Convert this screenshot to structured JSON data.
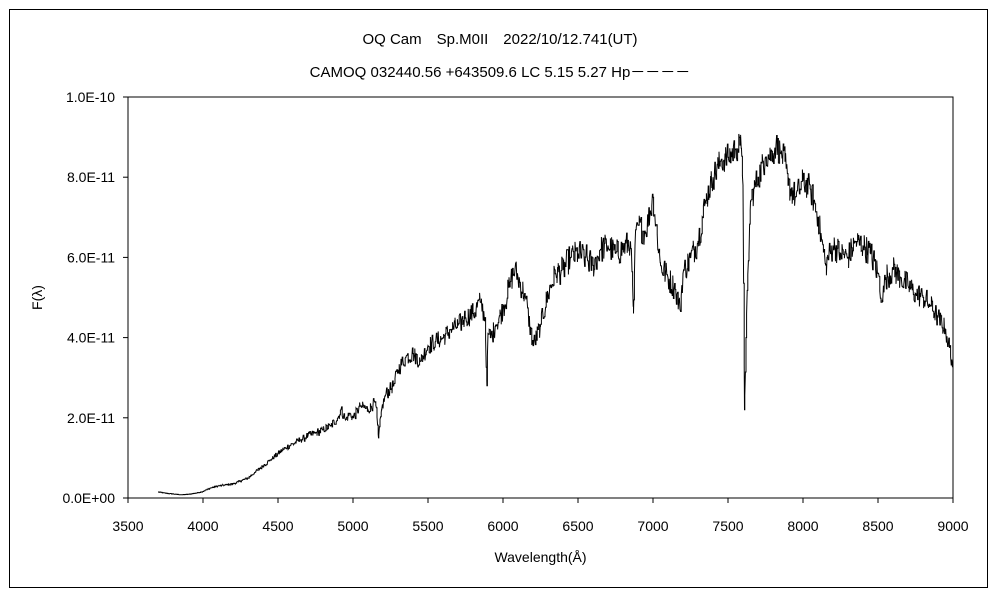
{
  "chart_data": {
    "type": "line",
    "title": "OQ Cam　Sp.M0II　2022/10/12.741(UT)",
    "subtitle": "CAMOQ 032440.56 +643509.6 LC 5.15 5.27 Hp－－－－",
    "xlabel": "Wavelength(Å)",
    "ylabel": "F(λ)",
    "xlim": [
      3500,
      9000
    ],
    "ylim": [
      0,
      1e-10
    ],
    "x_ticks": [
      3500,
      4000,
      4500,
      5000,
      5500,
      6000,
      6500,
      7000,
      7500,
      8000,
      8500,
      9000
    ],
    "x_tick_labels": [
      "3500",
      "4000",
      "4500",
      "5000",
      "5500",
      "6000",
      "6500",
      "7000",
      "7500",
      "8000",
      "8500",
      "9000"
    ],
    "y_ticks": [
      0,
      2e-11,
      4e-11,
      6e-11,
      8e-11,
      1e-10
    ],
    "y_tick_labels": [
      "0.0E+00",
      "2.0E-11",
      "4.0E-11",
      "6.0E-11",
      "8.0E-11",
      "1.0E-10"
    ],
    "grid": false,
    "legend": "none",
    "series": [
      {
        "x": [
          3700,
          3750,
          3800,
          3850,
          3900,
          3950,
          3990,
          4050,
          4100,
          4200,
          4300,
          4350,
          4400,
          4450,
          4500,
          4550,
          4600,
          4650,
          4700,
          4750,
          4800,
          4850,
          4900,
          4920,
          4950,
          4980,
          5000,
          5050,
          5100,
          5150,
          5170,
          5190,
          5220,
          5270,
          5300,
          5350,
          5400,
          5450,
          5500,
          5550,
          5600,
          5650,
          5700,
          5750,
          5800,
          5850,
          5880,
          5893,
          5900,
          5920,
          5950,
          6000,
          6050,
          6080,
          6100,
          6150,
          6200,
          6250,
          6300,
          6350,
          6400,
          6450,
          6500,
          6550,
          6600,
          6650,
          6700,
          6750,
          6800,
          6850,
          6870,
          6880,
          6900,
          6950,
          7000,
          7050,
          7100,
          7150,
          7180,
          7200,
          7250,
          7300,
          7350,
          7400,
          7450,
          7500,
          7550,
          7580,
          7590,
          7600,
          7610,
          7620,
          7650,
          7700,
          7750,
          7800,
          7820,
          7850,
          7880,
          7900,
          7950,
          8000,
          8050,
          8100,
          8150,
          8200,
          8250,
          8300,
          8350,
          8400,
          8450,
          8500,
          8530,
          8550,
          8600,
          8650,
          8700,
          8750,
          8800,
          8850,
          8900,
          8950,
          9000
        ],
        "y": [
          1.5e-12,
          1.2e-12,
          1e-12,
          8e-13,
          9e-13,
          1.2e-12,
          1.5e-12,
          2.5e-12,
          3e-12,
          3.5e-12,
          5e-12,
          6.5e-12,
          8e-12,
          9.5e-12,
          1.1e-11,
          1.25e-11,
          1.35e-11,
          1.45e-11,
          1.55e-11,
          1.62e-11,
          1.7e-11,
          1.8e-11,
          2e-11,
          2.2e-11,
          1.95e-11,
          2.1e-11,
          2e-11,
          2.3e-11,
          2.2e-11,
          2.4e-11,
          1.5e-11,
          2.2e-11,
          2.6e-11,
          2.8e-11,
          3.2e-11,
          3.5e-11,
          3.6e-11,
          3.4e-11,
          3.8e-11,
          3.9e-11,
          4e-11,
          4.2e-11,
          4.3e-11,
          4.5e-11,
          4.6e-11,
          4.9e-11,
          4.5e-11,
          2.8e-11,
          4.1e-11,
          4e-11,
          4.3e-11,
          4.7e-11,
          5.4e-11,
          5.7e-11,
          5.5e-11,
          5e-11,
          3.8e-11,
          4.3e-11,
          5.1e-11,
          5.6e-11,
          5.7e-11,
          6e-11,
          6.1e-11,
          6e-11,
          5.8e-11,
          6.2e-11,
          6.3e-11,
          6.1e-11,
          6.2e-11,
          6.4e-11,
          4.6e-11,
          6.3e-11,
          6.8e-11,
          6.6e-11,
          7.5e-11,
          5.8e-11,
          5.5e-11,
          5.2e-11,
          4.7e-11,
          5.6e-11,
          6e-11,
          6.4e-11,
          7.4e-11,
          8e-11,
          8.4e-11,
          8.5e-11,
          8.7e-11,
          8.8e-11,
          8.7e-11,
          7.8e-11,
          2.2e-11,
          4e-11,
          7.4e-11,
          8e-11,
          8.5e-11,
          8.6e-11,
          8.8e-11,
          8.6e-11,
          8.4e-11,
          7.8e-11,
          7.5e-11,
          7.9e-11,
          7.7e-11,
          7e-11,
          5.8e-11,
          6.3e-11,
          6.1e-11,
          6e-11,
          6.4e-11,
          6.3e-11,
          6.1e-11,
          5.6e-11,
          4.9e-11,
          5.5e-11,
          5.7e-11,
          5.5e-11,
          5.3e-11,
          5.1e-11,
          5e-11,
          4.8e-11,
          4.5e-11,
          4.2e-11,
          3.3e-11
        ]
      }
    ]
  }
}
